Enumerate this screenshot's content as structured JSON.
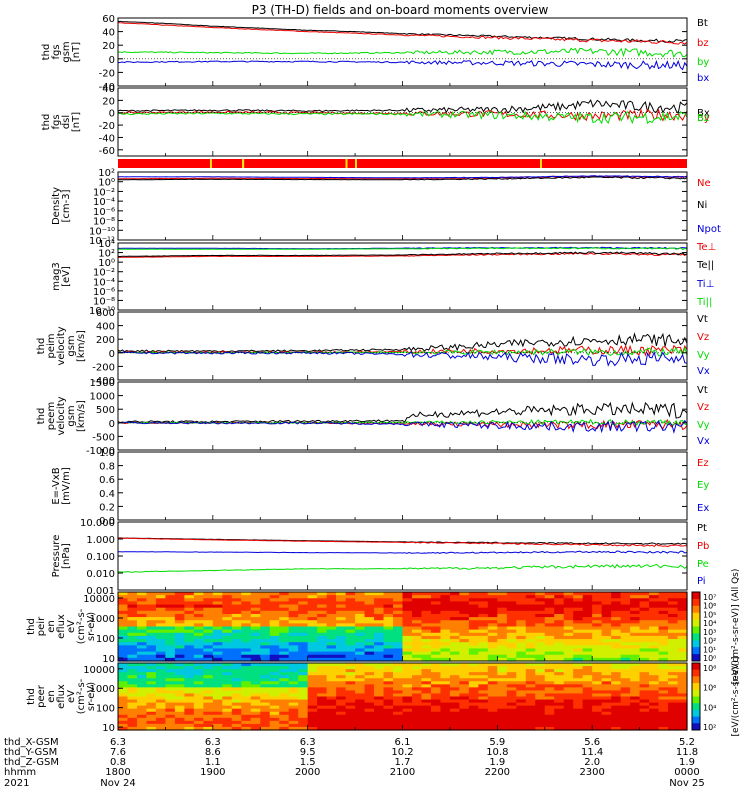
{
  "title": "P3 (TH-D) fields and on-board moments overview",
  "date": {
    "year": "2021",
    "start": "Nov 24",
    "end": "Nov 25"
  },
  "colors": {
    "black": "#000000",
    "red": "#ee0000",
    "green": "#00dd00",
    "blue": "#0000dd",
    "bar_red": "#ff0000",
    "bar_yellow": "#ffee00"
  },
  "chart_data": [
    {
      "type": "line",
      "id": "fgs_gsm",
      "ylabel": [
        "thd",
        "fgs",
        "gsm",
        "[nT]"
      ],
      "ylim": [
        -40,
        60
      ],
      "ticks": [
        60,
        40,
        20,
        0,
        -20,
        -40
      ],
      "series": [
        {
          "name": "Bt",
          "color": "#000000",
          "x": [
            18.0,
            18.5,
            19.0,
            19.5,
            20.0,
            20.5,
            21.0,
            21.5,
            22.0,
            22.5,
            23.0,
            23.5,
            24.0
          ],
          "values": [
            55,
            52,
            48,
            45,
            42,
            40,
            37,
            35,
            33,
            31,
            29,
            27,
            26
          ],
          "noise": 1.5
        },
        {
          "name": "bz",
          "color": "#ee0000",
          "x": [
            18.0,
            19.0,
            20.0,
            21.0,
            22.0,
            23.0,
            24.0
          ],
          "values": [
            53,
            46,
            40,
            35,
            31,
            27,
            24
          ],
          "noise": 2
        },
        {
          "name": "by",
          "color": "#00dd00",
          "x": [
            18.0,
            19.0,
            20.0,
            21.0,
            22.0,
            23.0,
            24.0
          ],
          "values": [
            10,
            9,
            8,
            9,
            10,
            11,
            8
          ],
          "noise": 4
        },
        {
          "name": "bx",
          "color": "#0000dd",
          "x": [
            18.0,
            19.0,
            20.0,
            21.0,
            22.0,
            23.0,
            24.0
          ],
          "values": [
            -5,
            -4,
            -4,
            -5,
            -6,
            -8,
            -10
          ],
          "noise": 4
        }
      ]
    },
    {
      "type": "line",
      "id": "fgs_dsl",
      "ylabel": [
        "thd",
        "fgs",
        "dsl",
        "[nT]"
      ],
      "ylim": [
        -70,
        40
      ],
      "ticks": [
        40,
        20,
        0,
        -20,
        -40,
        -60
      ],
      "series": [
        {
          "name": "Bx",
          "color": "#000000",
          "x": [
            18.0,
            19.0,
            20.0,
            21.0,
            22.0,
            22.7,
            23.0,
            23.5,
            24.0
          ],
          "values": [
            3,
            4,
            3,
            4,
            5,
            10,
            15,
            10,
            8
          ],
          "noise": 6
        },
        {
          "name": "By",
          "color": "#ee0000",
          "x": [
            18.0,
            19.0,
            20.0,
            21.0,
            22.0,
            23.0,
            24.0
          ],
          "values": [
            0,
            1,
            0,
            -1,
            -2,
            -5,
            -3
          ],
          "noise": 6
        },
        {
          "name": "Bz",
          "color": "#00dd00",
          "x": [
            18.0,
            19.0,
            20.0,
            21.0,
            22.0,
            23.0,
            24.0
          ],
          "values": [
            -2,
            -1,
            -2,
            -2,
            -4,
            -8,
            -6
          ],
          "noise": 7
        }
      ]
    },
    {
      "type": "bar",
      "id": "mode_bar",
      "segments": [
        {
          "x0": 18.0,
          "x1": 18.97,
          "color": "#ff0000"
        },
        {
          "x0": 18.97,
          "x1": 18.99,
          "color": "#ffee00"
        },
        {
          "x0": 18.99,
          "x1": 19.31,
          "color": "#ff0000"
        },
        {
          "x0": 19.31,
          "x1": 19.33,
          "color": "#ffee00"
        },
        {
          "x0": 19.33,
          "x1": 20.4,
          "color": "#ff0000"
        },
        {
          "x0": 20.4,
          "x1": 20.42,
          "color": "#ffee00"
        },
        {
          "x0": 20.42,
          "x1": 20.5,
          "color": "#ff0000"
        },
        {
          "x0": 20.5,
          "x1": 20.52,
          "color": "#ffee00"
        },
        {
          "x0": 20.52,
          "x1": 22.45,
          "color": "#ff0000"
        },
        {
          "x0": 22.45,
          "x1": 22.47,
          "color": "#ffee00"
        },
        {
          "x0": 22.47,
          "x1": 24.0,
          "color": "#ff0000"
        }
      ]
    },
    {
      "type": "line",
      "id": "density",
      "log": true,
      "ylabel": [
        "Density",
        "[cm-3]"
      ],
      "ylim": [
        -12,
        2
      ],
      "tick_labels": [
        "10²",
        "10⁰",
        "10⁻²",
        "10⁻⁴",
        "10⁻⁶",
        "10⁻⁸",
        "10⁻¹⁰",
        "10⁻¹²"
      ],
      "tick_exp": [
        2,
        0,
        -2,
        -4,
        -6,
        -8,
        -10,
        -12
      ],
      "series": [
        {
          "name": "Ne",
          "color": "#ee0000",
          "x": [
            18.0,
            19.0,
            20.0,
            21.0,
            22.0,
            23.0,
            24.0
          ],
          "values": [
            0.6,
            0.7,
            0.65,
            0.6,
            0.8,
            1.1,
            0.9
          ],
          "noise": 0.15
        },
        {
          "name": "Ni",
          "color": "#000000",
          "x": [
            18.0,
            19.0,
            20.0,
            21.0,
            22.0,
            23.0,
            24.0
          ],
          "values": [
            0.4,
            0.5,
            0.45,
            0.4,
            0.6,
            0.9,
            0.7
          ],
          "noise": 0.12
        },
        {
          "name": "Npot",
          "color": "#0000dd",
          "x": [
            18.0,
            19.0,
            20.0,
            21.0,
            22.0,
            23.0,
            24.0
          ],
          "values": [
            1.0,
            1.0,
            0.9,
            0.8,
            0.9,
            1.2,
            1.0
          ],
          "noise": 0.05
        }
      ]
    },
    {
      "type": "line",
      "id": "temperature",
      "log": true,
      "ylabel": [
        "mag3",
        "[eV]"
      ],
      "ylim": [
        -10,
        4
      ],
      "tick_labels": [
        "10⁴",
        "10²",
        "10⁰",
        "10⁻²",
        "10⁻⁴",
        "10⁻⁶",
        "10⁻⁸",
        "10⁻¹⁰"
      ],
      "tick_exp": [
        4,
        2,
        0,
        -2,
        -4,
        -6,
        -8,
        -10
      ],
      "series": [
        {
          "name": "Te⊥",
          "color": "#ee0000",
          "x": [
            18.0,
            19.0,
            20.0,
            21.0,
            22.0,
            23.0,
            24.0
          ],
          "values": [
            1.0,
            1.2,
            1.2,
            1.3,
            1.6,
            1.8,
            1.5
          ],
          "noise": 0.15
        },
        {
          "name": "Te||",
          "color": "#000000",
          "x": [
            18.0,
            19.0,
            20.0,
            21.0,
            22.0,
            23.0,
            24.0
          ],
          "values": [
            1.2,
            1.4,
            1.4,
            1.5,
            1.8,
            2.0,
            1.7
          ],
          "noise": 0.15
        },
        {
          "name": "Ti⊥",
          "color": "#0000dd",
          "x": [
            18.0,
            19.0,
            20.0,
            21.0,
            22.0,
            23.0,
            24.0
          ],
          "values": [
            2.9,
            2.9,
            2.8,
            2.9,
            3.0,
            3.0,
            2.9
          ],
          "noise": 0.1
        },
        {
          "name": "Ti||",
          "color": "#00dd00",
          "x": [
            18.0,
            19.0,
            20.0,
            21.0,
            22.0,
            23.0,
            24.0
          ],
          "values": [
            2.7,
            2.7,
            2.7,
            2.8,
            2.9,
            2.9,
            2.8
          ],
          "noise": 0.1
        }
      ]
    },
    {
      "type": "line",
      "id": "peim_velocity",
      "ylabel": [
        "thd",
        "peim",
        "velocity",
        "gsm",
        "[km/s]"
      ],
      "ylim": [
        -400,
        600
      ],
      "ticks": [
        600,
        400,
        200,
        0,
        -200,
        -400
      ],
      "series": [
        {
          "name": "Vt",
          "color": "#000000",
          "x": [
            18.0,
            19.0,
            20.0,
            21.0,
            21.5,
            22.0,
            22.5,
            23.0,
            23.5,
            24.0
          ],
          "values": [
            30,
            25,
            30,
            50,
            80,
            120,
            160,
            180,
            200,
            170
          ],
          "noise": 60
        },
        {
          "name": "Vz",
          "color": "#ee0000",
          "x": [
            18.0,
            19.0,
            20.0,
            21.0,
            22.0,
            23.0,
            24.0
          ],
          "values": [
            10,
            5,
            10,
            15,
            30,
            40,
            35
          ],
          "noise": 50
        },
        {
          "name": "Vy",
          "color": "#00dd00",
          "x": [
            18.0,
            19.0,
            20.0,
            21.0,
            22.0,
            23.0,
            24.0
          ],
          "values": [
            5,
            0,
            5,
            5,
            10,
            10,
            10
          ],
          "noise": 40
        },
        {
          "name": "Vx",
          "color": "#0000dd",
          "x": [
            18.0,
            19.0,
            20.0,
            21.0,
            22.0,
            23.0,
            24.0
          ],
          "values": [
            0,
            -5,
            0,
            -20,
            -60,
            -100,
            -80
          ],
          "noise": 70
        }
      ]
    },
    {
      "type": "line",
      "id": "peem_velocity",
      "ylabel": [
        "thd",
        "peem",
        "velocity",
        "gsm",
        "[km/s]"
      ],
      "ylim": [
        -1000,
        1500
      ],
      "ticks": [
        1500,
        1000,
        500,
        0,
        -500,
        -1000
      ],
      "series": [
        {
          "name": "Vt",
          "color": "#000000",
          "x": [
            18.0,
            19.0,
            20.0,
            21.0,
            21.2,
            22.0,
            23.0,
            24.0
          ],
          "values": [
            40,
            40,
            60,
            80,
            300,
            400,
            500,
            450
          ],
          "noise": 180
        },
        {
          "name": "Vz",
          "color": "#ee0000",
          "x": [
            18.0,
            19.0,
            20.0,
            21.0,
            22.0,
            23.0,
            24.0
          ],
          "values": [
            0,
            0,
            0,
            -30,
            -60,
            -80,
            -60
          ],
          "noise": 120
        },
        {
          "name": "Vy",
          "color": "#00dd00",
          "x": [
            18.0,
            19.0,
            20.0,
            21.0,
            22.0,
            23.0,
            24.0
          ],
          "values": [
            0,
            0,
            0,
            10,
            20,
            20,
            20
          ],
          "noise": 80
        },
        {
          "name": "Vx",
          "color": "#0000dd",
          "x": [
            18.0,
            19.0,
            20.0,
            21.0,
            22.0,
            23.0,
            24.0
          ],
          "values": [
            0,
            -10,
            -10,
            -40,
            -100,
            -150,
            -120
          ],
          "noise": 150
        }
      ]
    },
    {
      "type": "line",
      "id": "efield",
      "ylabel": [
        "E=-VxB",
        "[mV/m]"
      ],
      "ylim": [
        0,
        1
      ],
      "ticks": [
        1.0,
        0.8,
        0.6,
        0.4,
        0.2,
        0.0
      ],
      "tick_labels": [
        "1.0",
        "0.8",
        "0.6",
        "0.4",
        "0.2",
        "0.0"
      ],
      "series": [
        {
          "name": "Ez",
          "color": "#ee0000",
          "x": [],
          "values": []
        },
        {
          "name": "Ey",
          "color": "#00dd00",
          "x": [],
          "values": []
        },
        {
          "name": "Ex",
          "color": "#0000dd",
          "x": [],
          "values": []
        }
      ]
    },
    {
      "type": "line",
      "id": "pressure",
      "log": true,
      "ylabel": [
        "Pressure",
        "[nPa]"
      ],
      "ylim": [
        -3,
        1
      ],
      "tick_labels": [
        "10.000",
        "1.000",
        "0.100",
        "0.010",
        "0.001"
      ],
      "tick_exp": [
        1,
        0,
        -1,
        -2,
        -3
      ],
      "series": [
        {
          "name": "Pt",
          "color": "#000000",
          "x": [
            18.0,
            19.0,
            20.0,
            21.0,
            22.0,
            23.0,
            24.0
          ],
          "values": [
            0.06,
            -0.02,
            -0.1,
            -0.17,
            -0.22,
            -0.26,
            -0.28
          ],
          "noise": 0.03
        },
        {
          "name": "Pb",
          "color": "#ee0000",
          "x": [
            18.0,
            19.0,
            20.0,
            21.0,
            22.0,
            23.0,
            24.0
          ],
          "values": [
            0.05,
            -0.05,
            -0.13,
            -0.2,
            -0.26,
            -0.34,
            -0.4
          ],
          "noise": 0.04
        },
        {
          "name": "Pe",
          "color": "#00dd00",
          "x": [
            18.0,
            19.0,
            20.0,
            21.0,
            22.0,
            23.0,
            24.0
          ],
          "values": [
            -1.95,
            -1.85,
            -1.75,
            -1.75,
            -1.7,
            -1.6,
            -1.6
          ],
          "noise": 0.08
        },
        {
          "name": "Pi",
          "color": "#0000dd",
          "x": [
            18.0,
            19.0,
            20.0,
            21.0,
            22.0,
            23.0,
            24.0
          ],
          "values": [
            -0.75,
            -0.77,
            -0.8,
            -0.82,
            -0.8,
            -0.75,
            -0.78
          ],
          "noise": 0.04
        }
      ]
    },
    {
      "type": "heatmap",
      "id": "peir",
      "ylabel": [
        "thd",
        "peir",
        "en",
        "eflux",
        "eV",
        "(cm²-s-",
        "sr-eV)"
      ],
      "ylim_log": [
        0.85,
        4.3
      ],
      "tick_labels": [
        "10000",
        "1000",
        "100",
        "10"
      ],
      "tick_exp": [
        4,
        3,
        2,
        1
      ],
      "colorbar": {
        "labels": [
          "10⁷",
          "10⁶",
          "10⁵",
          "10⁴",
          "10³",
          "10²",
          "10¹",
          "10⁰"
        ],
        "unit": "[eV/(cm²-s-sr-eV)] (All Qs)"
      }
    },
    {
      "type": "heatmap",
      "id": "peer",
      "ylabel": [
        "thd",
        "peer",
        "en",
        "eflux",
        "eV",
        "(cm²-s-",
        "sr-eV)"
      ],
      "ylim_log": [
        0.85,
        4.3
      ],
      "tick_labels": [
        "10000",
        "1000",
        "100",
        "10"
      ],
      "tick_exp": [
        4,
        3,
        2,
        1
      ],
      "colorbar": {
        "labels": [
          "10⁸",
          "10⁶",
          "10⁴",
          "10²"
        ],
        "unit": "[eV/(cm²-s-sr-eV)]"
      }
    }
  ],
  "xaxis": {
    "row_labels": [
      "thd_X-GSM",
      "thd_Y-GSM",
      "thd_Z-GSM",
      "hhmm",
      "2021"
    ],
    "columns": [
      {
        "x": 18.0,
        "X": "6.3",
        "Y": "7.6",
        "Z": "0.8",
        "hhmm": "1800",
        "date": "Nov 24"
      },
      {
        "x": 19.0,
        "X": "6.3",
        "Y": "8.6",
        "Z": "1.1",
        "hhmm": "1900",
        "date": ""
      },
      {
        "x": 20.0,
        "X": "6.3",
        "Y": "9.5",
        "Z": "1.5",
        "hhmm": "2000",
        "date": ""
      },
      {
        "x": 21.0,
        "X": "6.1",
        "Y": "10.2",
        "Z": "1.7",
        "hhmm": "2100",
        "date": ""
      },
      {
        "x": 22.0,
        "X": "5.9",
        "Y": "10.8",
        "Z": "1.9",
        "hhmm": "2200",
        "date": ""
      },
      {
        "x": 23.0,
        "X": "5.6",
        "Y": "11.4",
        "Z": "2.0",
        "hhmm": "2300",
        "date": ""
      },
      {
        "x": 24.0,
        "X": "5.2",
        "Y": "11.8",
        "Z": "1.9",
        "hhmm": "0000",
        "date": "Nov 25"
      }
    ]
  }
}
